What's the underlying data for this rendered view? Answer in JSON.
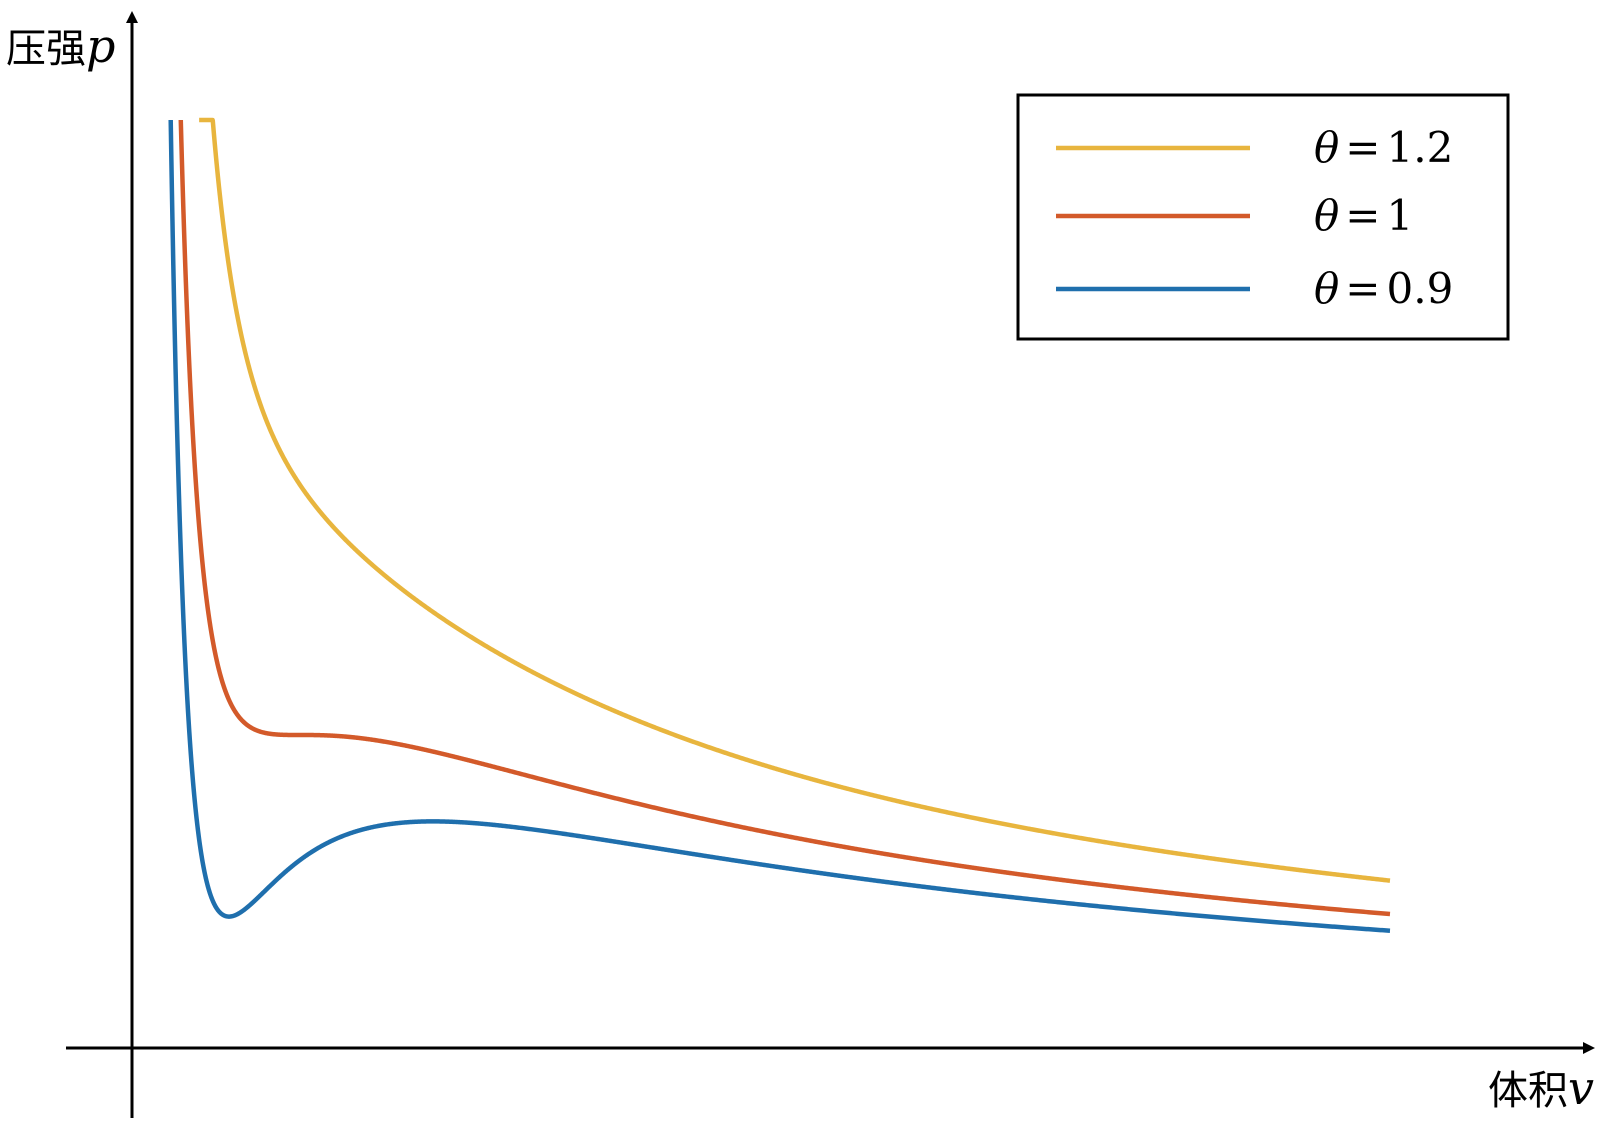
{
  "chart_data": {
    "type": "line",
    "title": "",
    "xlabel": "体积",
    "xlabel_symbol": "v",
    "ylabel": "压强",
    "ylabel_symbol": "p",
    "legend_position": "top-right",
    "axes_ticks": false,
    "grid": false,
    "series": [
      {
        "name_symbol": "θ",
        "name_eq": "=",
        "name_value": "1.2",
        "theta": 1.2,
        "color": "#E8B53E"
      },
      {
        "name_symbol": "θ",
        "name_eq": "=",
        "name_value": "1",
        "theta": 1.0,
        "color": "#D35A2A"
      },
      {
        "name_symbol": "θ",
        "name_eq": "=",
        "name_value": "0.9",
        "theta": 0.9,
        "color": "#1F6FAD"
      }
    ]
  }
}
